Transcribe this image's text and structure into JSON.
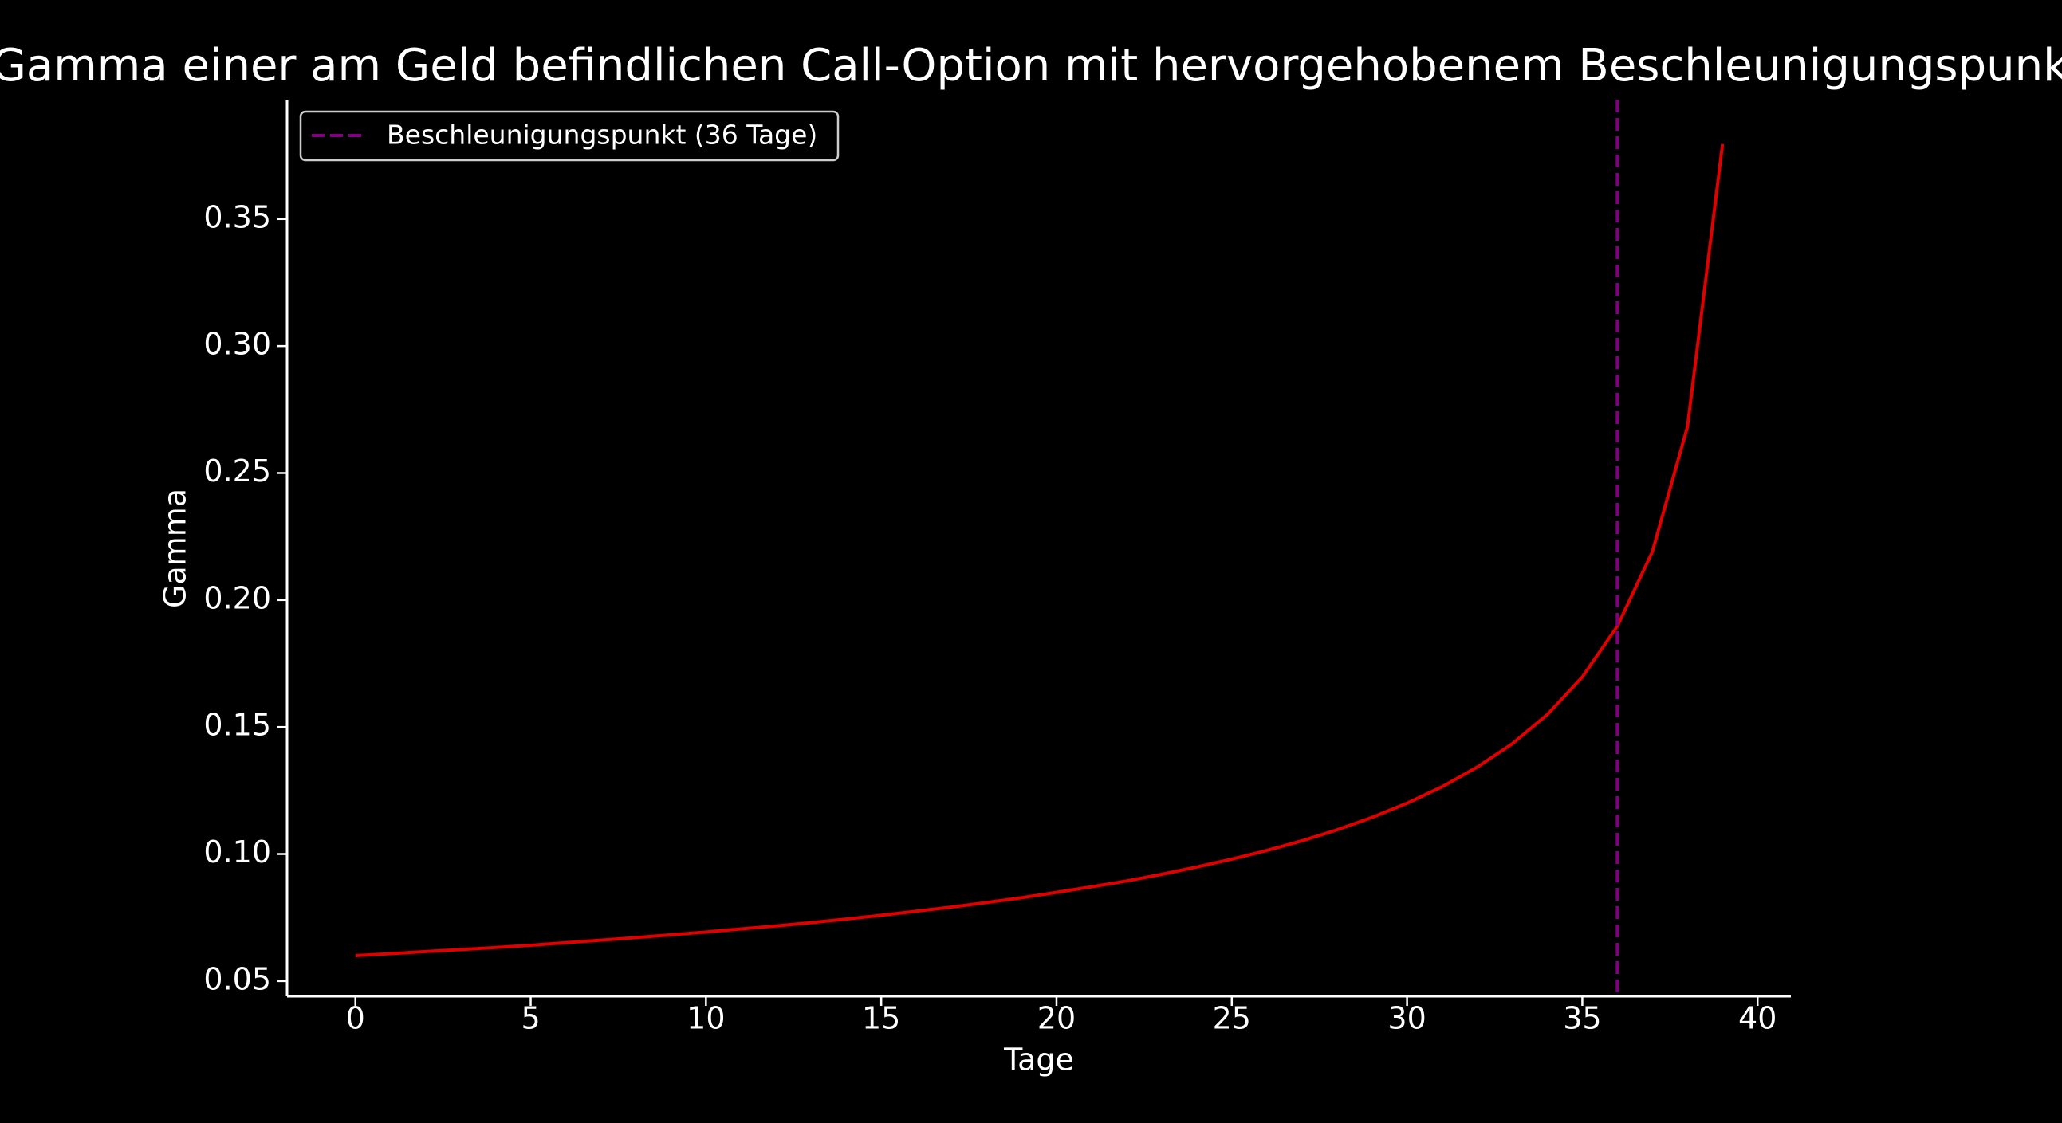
{
  "chart_data": {
    "type": "line",
    "title": "Gamma einer am Geld befindlichen Call-Option mit hervorgehobenem Beschleunigungspunkt",
    "x_label": "Tage",
    "y_label": "Gamma",
    "x": [
      0,
      1,
      2,
      3,
      4,
      5,
      6,
      7,
      8,
      9,
      10,
      11,
      12,
      13,
      14,
      15,
      16,
      17,
      18,
      19,
      20,
      21,
      22,
      23,
      24,
      25,
      26,
      27,
      28,
      29,
      30,
      31,
      32,
      33,
      34,
      35,
      36,
      37,
      38,
      39
    ],
    "series": [
      {
        "color": "#e00000",
        "values": [
          0.06,
          0.0608,
          0.0616,
          0.0624,
          0.0632,
          0.0641,
          0.0651,
          0.0661,
          0.0671,
          0.0682,
          0.0693,
          0.0705,
          0.0717,
          0.073,
          0.0744,
          0.0759,
          0.0775,
          0.0791,
          0.0809,
          0.0828,
          0.0849,
          0.0871,
          0.0894,
          0.092,
          0.0949,
          0.098,
          0.1014,
          0.1052,
          0.1095,
          0.1144,
          0.12,
          0.1265,
          0.1342,
          0.1434,
          0.1549,
          0.1697,
          0.1897,
          0.2191,
          0.2683,
          0.3795
        ]
      }
    ],
    "vline": {
      "x": 36,
      "label": "Beschleunigungspunkt (36 Tage)",
      "color": "#800080"
    },
    "xlim": [
      -1.95,
      40.95
    ],
    "xticks": [
      0,
      5,
      10,
      15,
      20,
      25,
      30,
      35,
      40
    ],
    "ylim": [
      0.044,
      0.397
    ],
    "yticks": [
      0.05,
      {
        "value": 0.1,
        "label": "0.10"
      },
      0.15,
      {
        "value": 0.2,
        "label": "0.20"
      },
      0.25,
      {
        "value": 0.3,
        "label": "0.30"
      },
      0.35
    ],
    "legend": "upper left",
    "background": "#000000"
  }
}
